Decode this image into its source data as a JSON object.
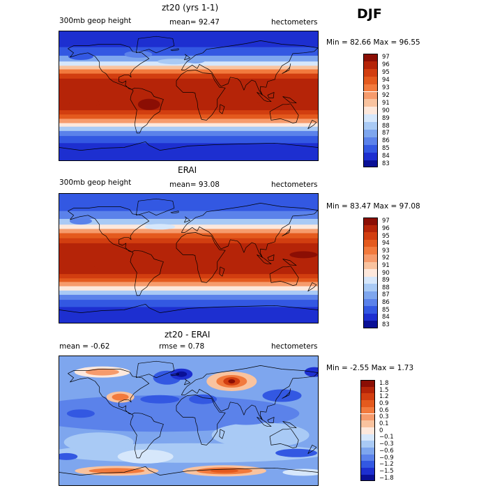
{
  "season": "DJF",
  "chart_data": [
    {
      "type": "heatmap",
      "title": "zt20 (yrs 1-1)",
      "left_label": "300mb geop height",
      "stat_label": "mean=  92.47",
      "units": "hectometers",
      "min_max": "Min =  82.66 Max =  96.55",
      "mean": 92.47,
      "min": 82.66,
      "max": 96.55,
      "colorbar": {
        "labels": [
          "97",
          "96",
          "95",
          "94",
          "93",
          "92",
          "91",
          "90",
          "89",
          "88",
          "87",
          "86",
          "85",
          "84",
          "83"
        ],
        "colors": [
          "#8b0e04",
          "#b52408",
          "#d23e10",
          "#e45a1e",
          "#f27a3d",
          "#f69b6c",
          "#f9c39f",
          "#fde8dc",
          "#d6e7fb",
          "#a9caf5",
          "#7ea6ee",
          "#5b82ea",
          "#3358e2",
          "#1d2fd0",
          "#0a1096"
        ]
      },
      "zones": [
        {
          "lat_from": 90,
          "lat_to": 68,
          "level": 84
        },
        {
          "lat_from": 68,
          "lat_to": 56,
          "level": 85
        },
        {
          "lat_from": 56,
          "lat_to": 48,
          "level": 87
        },
        {
          "lat_from": 48,
          "lat_to": 42,
          "level": 89
        },
        {
          "lat_from": 42,
          "lat_to": 37,
          "level": 91
        },
        {
          "lat_from": 37,
          "lat_to": 31,
          "level": 93
        },
        {
          "lat_from": 31,
          "lat_to": 24,
          "level": 95
        },
        {
          "lat_from": 24,
          "lat_to": -20,
          "level": 96
        },
        {
          "lat_from": -20,
          "lat_to": -26,
          "level": 95
        },
        {
          "lat_from": -26,
          "lat_to": -32,
          "level": 94
        },
        {
          "lat_from": -32,
          "lat_to": -38,
          "level": 92
        },
        {
          "lat_from": -38,
          "lat_to": -43,
          "level": 90
        },
        {
          "lat_from": -43,
          "lat_to": -49,
          "level": 88
        },
        {
          "lat_from": -49,
          "lat_to": -56,
          "level": 86
        },
        {
          "lat_from": -56,
          "lat_to": -66,
          "level": 85
        },
        {
          "lat_from": -66,
          "lat_to": -90,
          "level": 84
        }
      ]
    },
    {
      "type": "heatmap",
      "title": "ERAI",
      "left_label": "300mb geop height",
      "stat_label": "mean=  93.08",
      "units": "hectometers",
      "min_max": "Min =  83.47 Max =  97.08",
      "mean": 93.08,
      "min": 83.47,
      "max": 97.08,
      "colorbar": {
        "labels": [
          "97",
          "96",
          "95",
          "94",
          "93",
          "92",
          "91",
          "90",
          "89",
          "88",
          "87",
          "86",
          "85",
          "84",
          "83"
        ],
        "colors": [
          "#8b0e04",
          "#b52408",
          "#d23e10",
          "#e45a1e",
          "#f27a3d",
          "#f69b6c",
          "#f9c39f",
          "#fde8dc",
          "#d6e7fb",
          "#a9caf5",
          "#7ea6ee",
          "#5b82ea",
          "#3358e2",
          "#1d2fd0",
          "#0a1096"
        ]
      },
      "zones": [
        {
          "lat_from": 90,
          "lat_to": 66,
          "level": 85
        },
        {
          "lat_from": 66,
          "lat_to": 55,
          "level": 86
        },
        {
          "lat_from": 55,
          "lat_to": 47,
          "level": 88
        },
        {
          "lat_from": 47,
          "lat_to": 41,
          "level": 90
        },
        {
          "lat_from": 41,
          "lat_to": 35,
          "level": 92
        },
        {
          "lat_from": 35,
          "lat_to": 28,
          "level": 94
        },
        {
          "lat_from": 28,
          "lat_to": 21,
          "level": 95
        },
        {
          "lat_from": 21,
          "lat_to": -22,
          "level": 96
        },
        {
          "lat_from": -22,
          "lat_to": -28,
          "level": 95
        },
        {
          "lat_from": -28,
          "lat_to": -33,
          "level": 94
        },
        {
          "lat_from": -33,
          "lat_to": -39,
          "level": 92
        },
        {
          "lat_from": -39,
          "lat_to": -45,
          "level": 90
        },
        {
          "lat_from": -45,
          "lat_to": -51,
          "level": 88
        },
        {
          "lat_from": -51,
          "lat_to": -58,
          "level": 86
        },
        {
          "lat_from": -58,
          "lat_to": -68,
          "level": 85
        },
        {
          "lat_from": -68,
          "lat_to": -90,
          "level": 84
        }
      ]
    },
    {
      "type": "heatmap",
      "title": "zt20 - ERAI",
      "left_label": "mean =   -0.62",
      "stat_label": "rmse =    0.78",
      "units": "hectometers",
      "min_max": "Min =  -2.55 Max =    1.73",
      "mean": -0.62,
      "rmse": 0.78,
      "min": -2.55,
      "max": 1.73,
      "colorbar": {
        "labels": [
          "1.8",
          "1.5",
          "1.2",
          "0.9",
          "0.6",
          "0.3",
          "0.1",
          "0",
          "-0.1",
          "-0.3",
          "-0.6",
          "-0.9",
          "-1.2",
          "-1.5",
          "-1.8"
        ],
        "colors": [
          "#8b0e04",
          "#b52408",
          "#d23e10",
          "#e45a1e",
          "#f27a3d",
          "#f69b6c",
          "#f9c39f",
          "#fde8dc",
          "#d6e7fb",
          "#a9caf5",
          "#7ea6ee",
          "#5b82ea",
          "#3358e2",
          "#1d2fd0",
          "#0a1096"
        ]
      }
    }
  ]
}
